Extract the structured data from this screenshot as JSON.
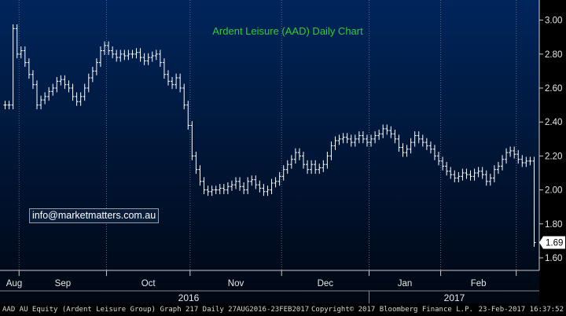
{
  "chart_data": {
    "type": "bar",
    "style": "ohlc",
    "title": "Ardent Leisure (AAD) Daily Chart",
    "title_color": "#33cc33",
    "ylim": [
      1.56,
      3.02
    ],
    "y_ticks": [
      "3.00",
      "2.80",
      "2.60",
      "2.40",
      "2.20",
      "2.00",
      "1.80",
      "1.60"
    ],
    "x_ticks": [
      "Aug",
      "Sep",
      "Oct",
      "Nov",
      "Dec",
      "Jan",
      "Feb"
    ],
    "year_labels": [
      "2016",
      "2017"
    ],
    "last_price": "1.69",
    "grid": "vertical dotted at month boundaries",
    "bar_color": "#ffffff",
    "series": [
      {
        "values": [
          2.5,
          2.5,
          2.95,
          2.8,
          2.82,
          2.75,
          2.68,
          2.62,
          2.5,
          2.53,
          2.55,
          2.58,
          2.6,
          2.64,
          2.65,
          2.62,
          2.6,
          2.55,
          2.52,
          2.55,
          2.6,
          2.66,
          2.7,
          2.75,
          2.82,
          2.85,
          2.82,
          2.8,
          2.78,
          2.8,
          2.79,
          2.8,
          2.8,
          2.81,
          2.78,
          2.76,
          2.78,
          2.79,
          2.8,
          2.75,
          2.68,
          2.64,
          2.62,
          2.66,
          2.6,
          2.5,
          2.38,
          2.2,
          2.12,
          2.05,
          2.0,
          1.99,
          2.0,
          2.0,
          2.01,
          2.0,
          2.02,
          2.03,
          2.05,
          2.02,
          2.0,
          2.05,
          2.06,
          2.03,
          2.01,
          1.99,
          2.0,
          2.04,
          2.05,
          2.08,
          2.12,
          2.15,
          2.18,
          2.22,
          2.2,
          2.15,
          2.12,
          2.15,
          2.12,
          2.13,
          2.15,
          2.2,
          2.26,
          2.29,
          2.3,
          2.31,
          2.3,
          2.28,
          2.3,
          2.32,
          2.3,
          2.28,
          2.3,
          2.32,
          2.33,
          2.36,
          2.35,
          2.33,
          2.3,
          2.25,
          2.22,
          2.24,
          2.28,
          2.32,
          2.3,
          2.28,
          2.26,
          2.24,
          2.2,
          2.17,
          2.14,
          2.11,
          2.09,
          2.07,
          2.08,
          2.1,
          2.09,
          2.08,
          2.1,
          2.11,
          2.09,
          2.05,
          2.07,
          2.12,
          2.14,
          2.18,
          2.22,
          2.23,
          2.21,
          2.18,
          2.16,
          2.17,
          2.17,
          1.69
        ]
      }
    ]
  },
  "footer": {
    "security": "AAD AU Equity (Ardent Leisure Group) Graph 217  Daily 27AUG2016-23FEB2017",
    "copyright": "Copyright© 2017 Bloomberg Finance L.P.",
    "timestamp": "23-Feb-2017 16:37:52"
  },
  "annotation": {
    "email": "info@marketmatters.com.au"
  }
}
